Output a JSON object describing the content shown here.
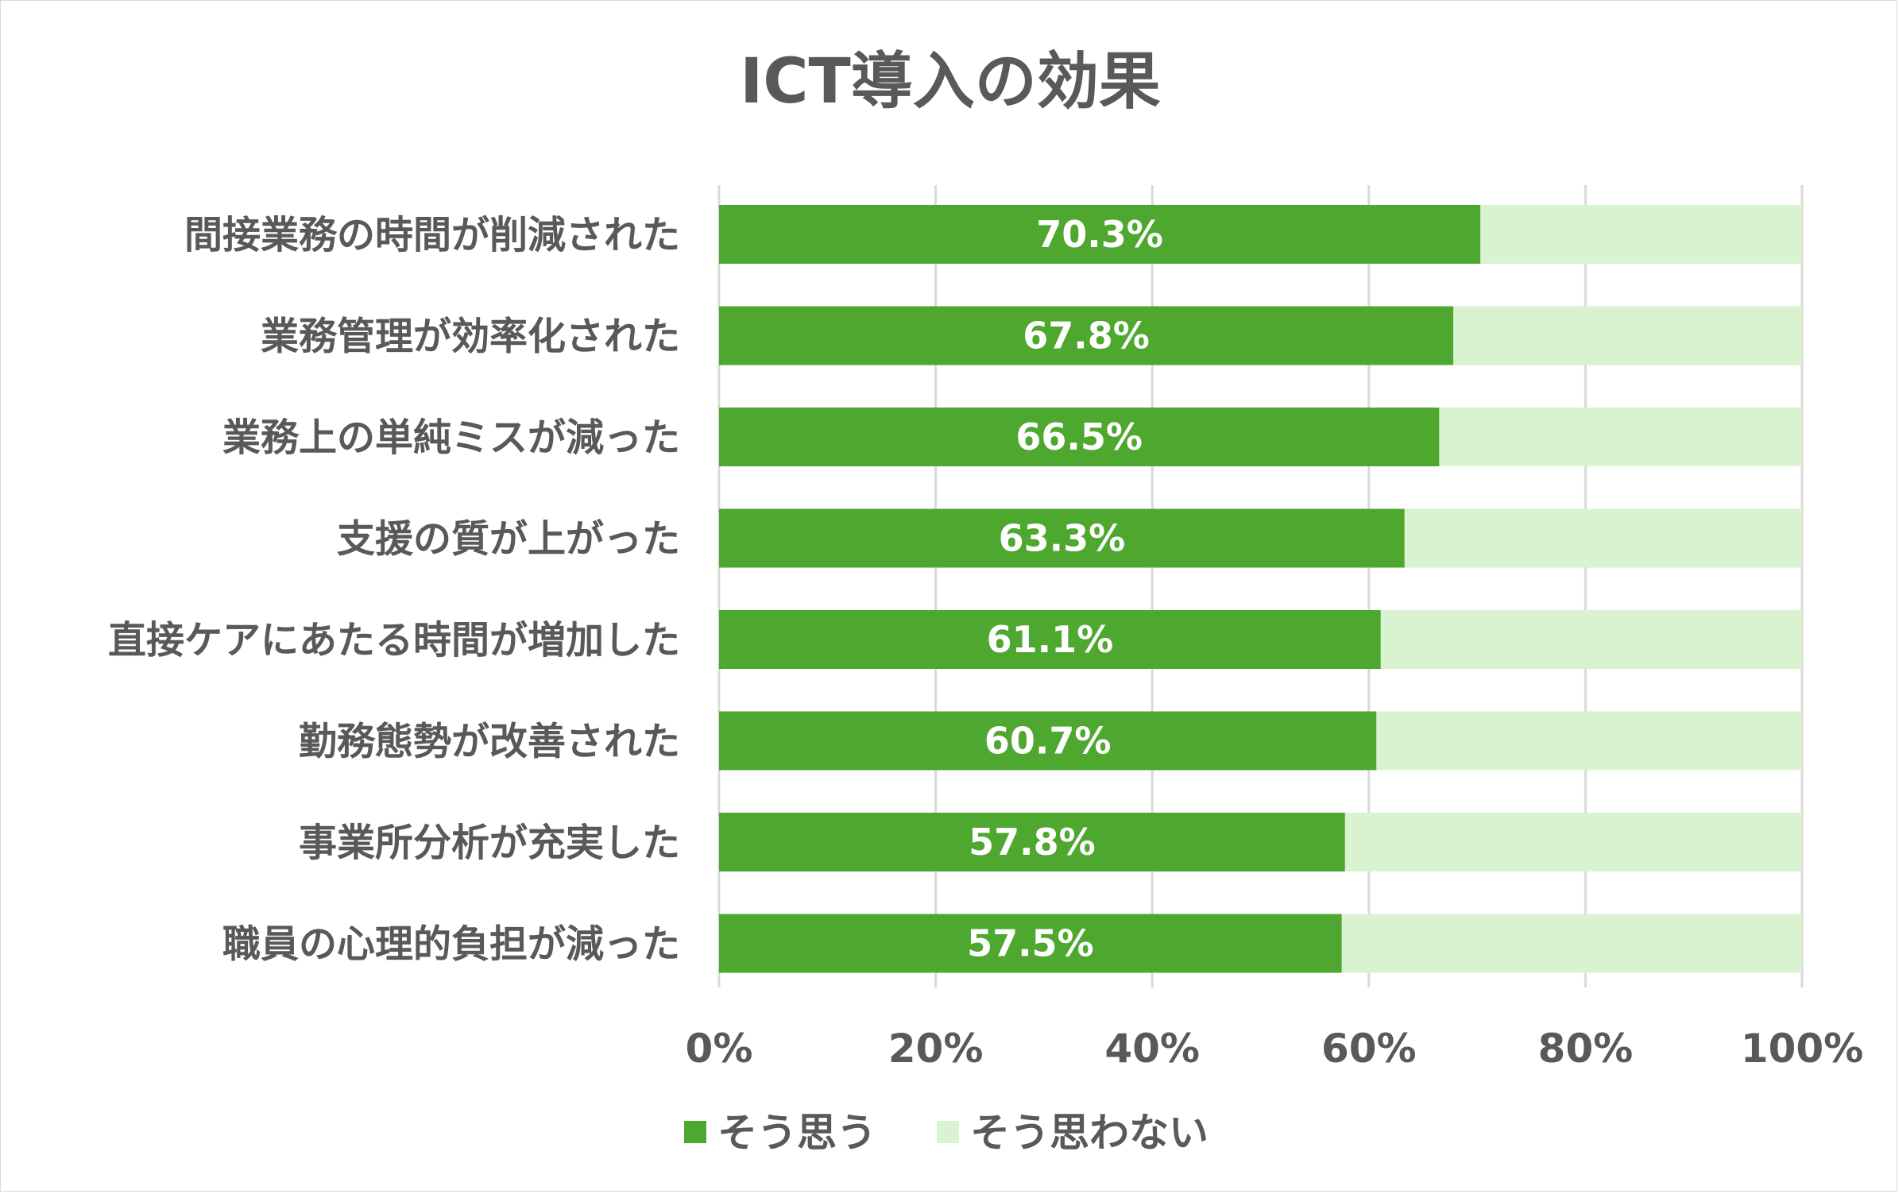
{
  "chart_data": {
    "type": "bar",
    "orientation": "horizontal",
    "stacked": "percent",
    "title": "ICT導入の効果",
    "categories": [
      "間接業務の時間が削減された",
      "業務管理が効率化された",
      "業務上の単純ミスが減った",
      "支援の質が上がった",
      "直接ケアにあたる時間が増加した",
      "勤務態勢が改善された",
      "事業所分析が充実した",
      "職員の心理的負担が減った"
    ],
    "series": [
      {
        "name": "そう思う",
        "color": "#4ea72e",
        "values": [
          70.3,
          67.8,
          66.5,
          63.3,
          61.1,
          60.7,
          57.8,
          57.5
        ],
        "data_labels": [
          "70.3%",
          "67.8%",
          "66.5%",
          "63.3%",
          "61.1%",
          "60.7%",
          "57.8%",
          "57.5%"
        ]
      },
      {
        "name": "そう思わない",
        "color": "#d9f2d0",
        "values": [
          29.7,
          32.2,
          33.5,
          36.7,
          38.9,
          39.3,
          42.2,
          42.5
        ]
      }
    ],
    "xlim": [
      0,
      100
    ],
    "x_ticks": [
      "0%",
      "20%",
      "40%",
      "60%",
      "80%",
      "100%"
    ],
    "grid": true,
    "legend": "bottom"
  }
}
